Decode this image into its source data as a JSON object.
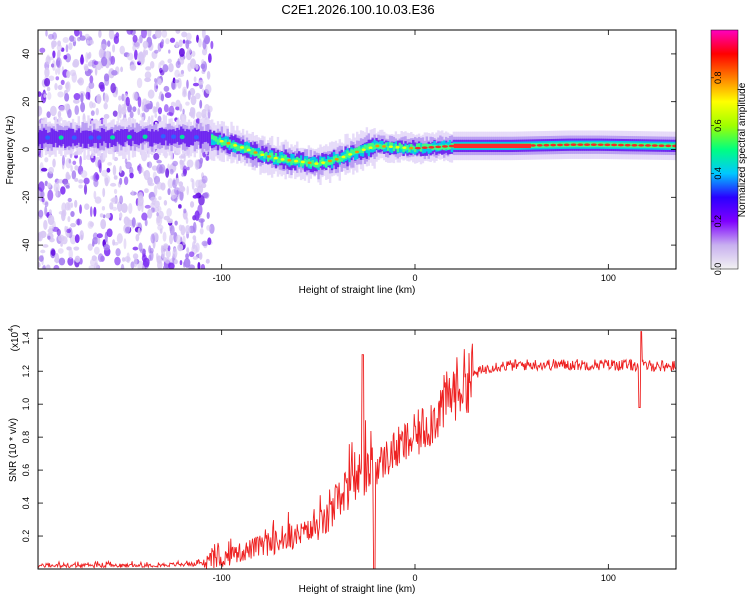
{
  "figure": {
    "title": "C2E1.2026.100.10.03.E36"
  },
  "chart_data": [
    {
      "type": "heatmap",
      "name": "spectrogram",
      "title": "C2E1.2026.100.10.03.E36",
      "xlabel": "Height of straight line (km)",
      "ylabel": "Frequency (Hz)",
      "xlim": [
        -195,
        135
      ],
      "ylim": [
        -50,
        50
      ],
      "xticks": [
        -100,
        0,
        100
      ],
      "xtick_labels": [
        "-100",
        "0",
        "100"
      ],
      "yticks": [
        -40,
        -20,
        0,
        20,
        40
      ],
      "ytick_labels": [
        "-40",
        "-20",
        "0",
        "20",
        "40"
      ],
      "colorbar": {
        "label": "Normalized spectral amplitude",
        "range": [
          0.0,
          1.0
        ],
        "ticks": [
          0.0,
          0.2,
          0.4,
          0.6,
          0.8
        ],
        "tick_labels": [
          "0.0",
          "0.2",
          "0.4",
          "0.6",
          "0.8"
        ],
        "colormap": [
          "#f2f2f2",
          "#c8b0f0",
          "#7f00ff",
          "#2a00ff",
          "#00c8ff",
          "#00ff80",
          "#a0ff00",
          "#ffff00",
          "#ff8000",
          "#ff0000",
          "#ff00c0"
        ]
      },
      "noise_region_x": [
        -195,
        -105
      ],
      "band_center_hz": [
        {
          "x": -190,
          "y": 5
        },
        {
          "x": -160,
          "y": 5
        },
        {
          "x": -130,
          "y": 5.5
        },
        {
          "x": -110,
          "y": 5
        },
        {
          "x": -100,
          "y": 3.5
        },
        {
          "x": -90,
          "y": 1
        },
        {
          "x": -80,
          "y": -2
        },
        {
          "x": -70,
          "y": -4
        },
        {
          "x": -60,
          "y": -5
        },
        {
          "x": -50,
          "y": -6
        },
        {
          "x": -40,
          "y": -4
        },
        {
          "x": -30,
          "y": -1
        },
        {
          "x": -20,
          "y": 1.5
        },
        {
          "x": -10,
          "y": 1
        },
        {
          "x": 0,
          "y": 0.5
        },
        {
          "x": 20,
          "y": 1.5
        },
        {
          "x": 50,
          "y": 1.5
        },
        {
          "x": 80,
          "y": 2
        },
        {
          "x": 95,
          "y": 2
        },
        {
          "x": 135,
          "y": 1.5
        }
      ]
    },
    {
      "type": "line",
      "name": "snr",
      "xlabel": "Height of straight line (km)",
      "ylabel": "SNR (10 * v/v)",
      "scale_label": "(x10",
      "scale_exponent": "4",
      "xlim": [
        -195,
        135
      ],
      "ylim": [
        0,
        1.45
      ],
      "xticks": [
        -100,
        0,
        100
      ],
      "xtick_labels": [
        "-100",
        "0",
        "100"
      ],
      "yticks": [
        0.2,
        0.4,
        0.6,
        0.8,
        1.0,
        1.2,
        1.4
      ],
      "ytick_labels": [
        "0.2",
        "0.4",
        "0.6",
        "0.8",
        "1.0",
        "1.2",
        "1.4"
      ],
      "color": "#ee2020",
      "trend": [
        {
          "x": -195,
          "y": 0.02
        },
        {
          "x": -150,
          "y": 0.02
        },
        {
          "x": -110,
          "y": 0.03
        },
        {
          "x": -100,
          "y": 0.06
        },
        {
          "x": -85,
          "y": 0.12
        },
        {
          "x": -70,
          "y": 0.17
        },
        {
          "x": -55,
          "y": 0.22
        },
        {
          "x": -45,
          "y": 0.3
        },
        {
          "x": -38,
          "y": 0.45
        },
        {
          "x": -30,
          "y": 0.55
        },
        {
          "x": -20,
          "y": 0.62
        },
        {
          "x": -10,
          "y": 0.72
        },
        {
          "x": 0,
          "y": 0.8
        },
        {
          "x": 10,
          "y": 0.92
        },
        {
          "x": 20,
          "y": 1.08
        },
        {
          "x": 30,
          "y": 1.18
        },
        {
          "x": 40,
          "y": 1.23
        },
        {
          "x": 60,
          "y": 1.24
        },
        {
          "x": 80,
          "y": 1.24
        },
        {
          "x": 100,
          "y": 1.24
        },
        {
          "x": 135,
          "y": 1.23
        }
      ],
      "features": [
        {
          "x": -27,
          "y": 1.3,
          "note": "spike"
        },
        {
          "x": -21,
          "y": 0.0,
          "note": "dropout"
        },
        {
          "x": 117,
          "y": 1.44,
          "note": "spike"
        },
        {
          "x": 116,
          "y": 0.98,
          "note": "dip"
        }
      ]
    }
  ]
}
